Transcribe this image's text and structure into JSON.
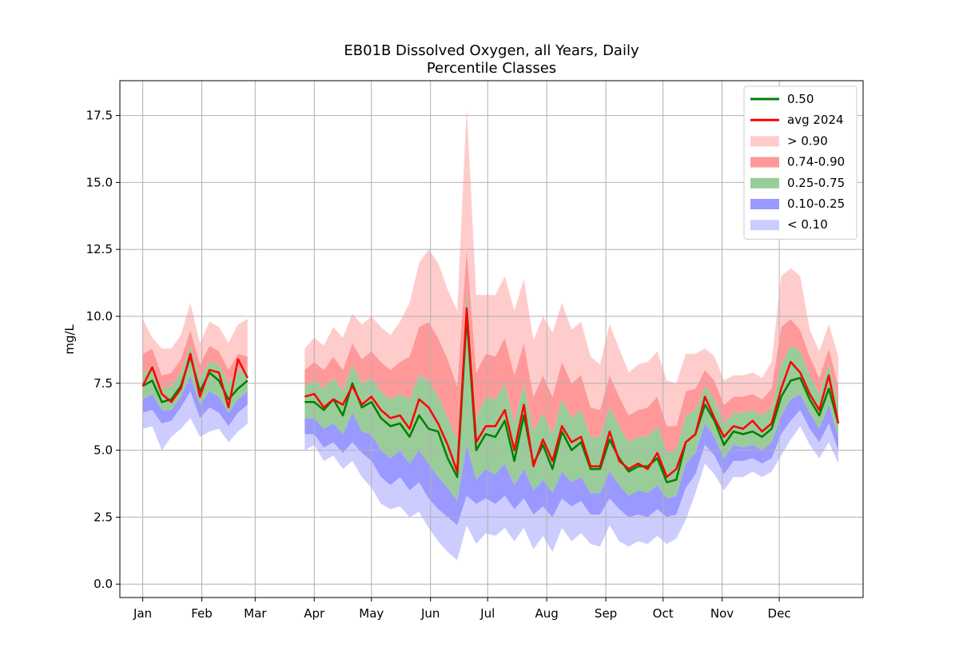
{
  "chart_data": {
    "type": "area",
    "title": "EB01B Dissolved Oxygen, all Years, Daily",
    "subtitle": "Percentile Classes",
    "ylabel": "mg/L",
    "xlabel": "",
    "ylim": [
      -0.5,
      18.8
    ],
    "xlim": [
      -12,
      378
    ],
    "grid": true,
    "legend_position": "top-right",
    "x_ticks": [
      {
        "day": 0,
        "label": "Jan"
      },
      {
        "day": 31,
        "label": "Feb"
      },
      {
        "day": 59,
        "label": "Mar"
      },
      {
        "day": 90,
        "label": "Apr"
      },
      {
        "day": 120,
        "label": "May"
      },
      {
        "day": 151,
        "label": "Jun"
      },
      {
        "day": 181,
        "label": "Jul"
      },
      {
        "day": 212,
        "label": "Aug"
      },
      {
        "day": 243,
        "label": "Sep"
      },
      {
        "day": 273,
        "label": "Oct"
      },
      {
        "day": 304,
        "label": "Nov"
      },
      {
        "day": 334,
        "label": "Dec"
      }
    ],
    "y_ticks": [
      "0.0",
      "2.5",
      "5.0",
      "7.5",
      "10.0",
      "12.5",
      "15.0",
      "17.5"
    ],
    "y_tick_values": [
      0,
      2.5,
      5,
      7.5,
      10,
      12.5,
      15,
      17.5
    ],
    "colors": {
      "median": "#008000",
      "avg": "#ff0000",
      "above90": "#ffcccc",
      "p74_90": "#ff9999",
      "p25_75": "#99cc99",
      "p10_25": "#9999ff",
      "below10": "#ccccff"
    },
    "series": [
      {
        "name": "0.50",
        "kind": "line",
        "color": "#008000"
      },
      {
        "name": "avg 2024",
        "kind": "line",
        "color": "#ff0000"
      },
      {
        "name": "> 0.90",
        "kind": "band",
        "color": "#ffcccc"
      },
      {
        "name": "0.74-0.90",
        "kind": "band",
        "color": "#ff9999"
      },
      {
        "name": "0.25-0.75",
        "kind": "band",
        "color": "#99cc99"
      },
      {
        "name": "0.10-0.25",
        "kind": "band",
        "color": "#9999ff"
      },
      {
        "name": "< 0.10",
        "kind": "band",
        "color": "#ccccff"
      }
    ],
    "segments": [
      {
        "x": [
          0,
          5,
          10,
          15,
          20,
          25,
          30,
          35,
          40,
          45,
          50,
          55
        ],
        "median": [
          7.4,
          7.6,
          6.8,
          6.9,
          7.4,
          8.5,
          7.2,
          7.9,
          7.6,
          6.9,
          7.3,
          7.6
        ],
        "avg": [
          7.4,
          8.1,
          7.1,
          6.8,
          7.3,
          8.6,
          7.0,
          8.0,
          7.9,
          6.6,
          8.4,
          7.7
        ],
        "p10": [
          6.4,
          6.5,
          6.0,
          6.1,
          6.6,
          7.2,
          6.2,
          6.6,
          6.4,
          5.9,
          6.4,
          6.7
        ],
        "p25": [
          6.9,
          7.1,
          6.5,
          6.5,
          7.0,
          7.8,
          6.7,
          7.2,
          7.0,
          6.4,
          6.9,
          7.2
        ],
        "p75": [
          7.8,
          8.2,
          7.3,
          7.4,
          7.9,
          8.9,
          7.7,
          8.3,
          8.2,
          7.5,
          8.0,
          8.0
        ],
        "p90": [
          8.6,
          8.8,
          7.8,
          7.9,
          8.4,
          9.5,
          8.2,
          8.9,
          8.7,
          8.0,
          8.6,
          8.5
        ],
        "min": [
          5.8,
          5.9,
          5.0,
          5.5,
          5.8,
          6.2,
          5.5,
          5.7,
          5.8,
          5.3,
          5.7,
          6.0
        ],
        "max": [
          9.9,
          9.2,
          8.8,
          8.8,
          9.3,
          10.5,
          9.0,
          9.8,
          9.6,
          9.0,
          9.7,
          9.9
        ]
      },
      {
        "x": [
          85,
          90,
          95,
          100,
          105,
          110,
          115,
          120,
          125,
          130,
          135,
          140,
          145,
          150,
          155,
          160,
          165,
          170,
          175,
          180,
          185,
          190,
          195,
          200,
          205,
          210,
          215,
          220,
          225,
          230,
          235,
          240,
          245,
          250,
          255,
          260,
          265,
          270,
          275,
          280,
          285,
          290,
          295,
          300,
          305,
          310,
          315,
          320,
          325,
          330,
          335,
          340,
          345,
          350,
          355,
          360,
          365
        ],
        "median": [
          6.8,
          6.8,
          6.5,
          6.9,
          6.3,
          7.5,
          6.6,
          6.8,
          6.2,
          5.9,
          6.0,
          5.5,
          6.3,
          5.8,
          5.7,
          4.7,
          4.0,
          10.0,
          5.0,
          5.6,
          5.5,
          6.1,
          4.6,
          6.3,
          4.5,
          5.2,
          4.3,
          5.7,
          5.0,
          5.3,
          4.3,
          4.3,
          5.4,
          4.7,
          4.2,
          4.4,
          4.4,
          4.7,
          3.8,
          3.9,
          5.3,
          5.6,
          6.7,
          6.1,
          5.2,
          5.7,
          5.6,
          5.7,
          5.5,
          5.8,
          7.0,
          7.6,
          7.7,
          6.9,
          6.3,
          7.3,
          6.0
        ],
        "avg": [
          7.0,
          7.1,
          6.6,
          6.9,
          6.7,
          7.4,
          6.7,
          7.0,
          6.5,
          6.2,
          6.3,
          5.8,
          6.9,
          6.6,
          6.0,
          5.2,
          4.2,
          10.3,
          5.3,
          5.9,
          5.9,
          6.5,
          5.0,
          6.7,
          4.4,
          5.4,
          4.6,
          5.9,
          5.3,
          5.5,
          4.4,
          4.4,
          5.7,
          4.6,
          4.3,
          4.5,
          4.3,
          4.9,
          4.0,
          4.3,
          5.3,
          5.6,
          7.0,
          6.2,
          5.5,
          5.9,
          5.8,
          6.1,
          5.7,
          6.0,
          7.3,
          8.3,
          7.9,
          7.1,
          6.5,
          7.8,
          6.0
        ],
        "p10": [
          5.6,
          5.6,
          5.1,
          5.3,
          4.9,
          5.3,
          4.9,
          4.6,
          4.0,
          3.7,
          4.0,
          3.5,
          3.8,
          3.2,
          2.8,
          2.5,
          2.2,
          3.3,
          3.0,
          3.2,
          3.0,
          3.3,
          2.8,
          3.2,
          2.6,
          2.9,
          2.5,
          3.2,
          2.9,
          3.1,
          2.6,
          2.6,
          3.2,
          2.8,
          2.5,
          2.6,
          2.5,
          2.8,
          2.5,
          2.6,
          3.6,
          4.1,
          5.2,
          4.8,
          4.1,
          4.6,
          4.6,
          4.7,
          4.5,
          4.7,
          5.6,
          6.1,
          6.5,
          5.8,
          5.3,
          6.0,
          5.0
        ],
        "p25": [
          6.2,
          6.2,
          5.8,
          6.0,
          5.6,
          6.4,
          5.7,
          5.6,
          5.0,
          4.7,
          5.0,
          4.5,
          5.0,
          4.5,
          4.0,
          3.6,
          3.1,
          5.2,
          3.9,
          4.3,
          4.1,
          4.5,
          3.7,
          4.3,
          3.5,
          3.9,
          3.4,
          4.2,
          3.8,
          4.0,
          3.4,
          3.4,
          4.2,
          3.7,
          3.3,
          3.5,
          3.4,
          3.7,
          3.2,
          3.3,
          4.5,
          4.9,
          6.0,
          5.5,
          4.7,
          5.2,
          5.1,
          5.2,
          5.0,
          5.3,
          6.3,
          6.9,
          7.1,
          6.4,
          5.8,
          6.7,
          5.5
        ],
        "p75": [
          7.4,
          7.6,
          7.3,
          7.7,
          7.2,
          8.2,
          7.5,
          7.7,
          7.2,
          6.9,
          7.1,
          6.9,
          7.8,
          7.6,
          7.0,
          6.2,
          5.4,
          11.0,
          6.2,
          7.0,
          6.9,
          7.5,
          6.0,
          7.5,
          5.7,
          6.4,
          5.6,
          6.9,
          6.2,
          6.5,
          5.5,
          5.5,
          6.6,
          5.9,
          5.3,
          5.5,
          5.5,
          5.9,
          4.9,
          5.0,
          6.3,
          6.5,
          7.4,
          6.9,
          6.0,
          6.4,
          6.4,
          6.5,
          6.3,
          6.6,
          8.2,
          8.9,
          8.7,
          7.8,
          7.1,
          8.2,
          6.8
        ],
        "p90": [
          8.0,
          8.3,
          8.0,
          8.5,
          8.0,
          9.0,
          8.4,
          8.7,
          8.3,
          8.0,
          8.3,
          8.5,
          9.6,
          9.8,
          9.2,
          8.4,
          7.4,
          12.5,
          7.9,
          8.6,
          8.5,
          9.2,
          7.8,
          9.0,
          7.0,
          7.8,
          7.0,
          8.3,
          7.5,
          7.8,
          6.6,
          6.5,
          7.8,
          7.0,
          6.3,
          6.5,
          6.6,
          7.0,
          5.9,
          5.9,
          7.2,
          7.3,
          8.0,
          7.6,
          6.7,
          7.0,
          7.0,
          7.1,
          6.9,
          7.3,
          9.6,
          9.9,
          9.5,
          8.5,
          7.7,
          8.8,
          7.4
        ],
        "min": [
          5.0,
          5.2,
          4.6,
          4.8,
          4.3,
          4.6,
          4.0,
          3.6,
          3.0,
          2.8,
          2.9,
          2.5,
          2.7,
          2.1,
          1.6,
          1.2,
          0.9,
          2.2,
          1.5,
          1.9,
          1.8,
          2.1,
          1.6,
          2.1,
          1.3,
          1.8,
          1.2,
          2.1,
          1.6,
          1.9,
          1.5,
          1.4,
          2.2,
          1.6,
          1.4,
          1.6,
          1.5,
          1.8,
          1.5,
          1.7,
          2.4,
          3.4,
          4.5,
          4.1,
          3.5,
          4.0,
          4.0,
          4.2,
          4.0,
          4.2,
          4.8,
          5.4,
          5.9,
          5.2,
          4.7,
          5.3,
          4.5
        ],
        "max": [
          8.8,
          9.2,
          8.9,
          9.6,
          9.2,
          10.1,
          9.7,
          10.0,
          9.6,
          9.3,
          9.8,
          10.5,
          12.0,
          12.5,
          12.0,
          11.0,
          10.2,
          17.8,
          10.8,
          10.8,
          10.8,
          11.5,
          10.2,
          11.4,
          9.1,
          10.0,
          9.4,
          10.5,
          9.5,
          9.8,
          8.5,
          8.2,
          9.7,
          8.8,
          7.9,
          8.2,
          8.3,
          8.7,
          7.6,
          7.5,
          8.6,
          8.6,
          8.8,
          8.5,
          7.6,
          7.8,
          7.8,
          7.9,
          7.7,
          8.3,
          11.5,
          11.8,
          11.5,
          9.5,
          8.7,
          9.7,
          8.5
        ]
      }
    ]
  }
}
